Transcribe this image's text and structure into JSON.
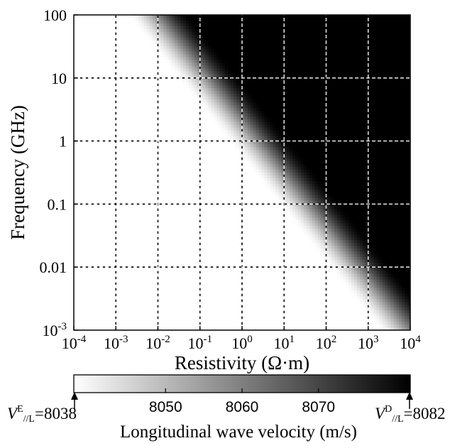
{
  "chart_data": {
    "type": "heatmap",
    "xlabel": "Resistivity (Ω·m)",
    "ylabel": "Frequency (GHz)",
    "x_scale": "log",
    "y_scale": "log",
    "xlim": [
      0.0001,
      10000
    ],
    "ylim": [
      0.001,
      100
    ],
    "x_ticks": [
      {
        "base": "10",
        "exp": "-4"
      },
      {
        "base": "10",
        "exp": "-3"
      },
      {
        "base": "10",
        "exp": "-2"
      },
      {
        "base": "10",
        "exp": "-1"
      },
      {
        "base": "10",
        "exp": "0"
      },
      {
        "base": "10",
        "exp": "1"
      },
      {
        "base": "10",
        "exp": "2"
      },
      {
        "base": "10",
        "exp": "3"
      },
      {
        "base": "10",
        "exp": "4"
      }
    ],
    "y_ticks": [
      {
        "value": 0.001,
        "label": "10",
        "exp": "-3"
      },
      {
        "value": 0.01,
        "label": "0.01",
        "exp": ""
      },
      {
        "value": 0.1,
        "label": "0.1",
        "exp": ""
      },
      {
        "value": 1,
        "label": "1",
        "exp": ""
      },
      {
        "value": 10,
        "label": "10",
        "exp": ""
      },
      {
        "value": 100,
        "label": "100",
        "exp": ""
      }
    ],
    "grid": true,
    "grid_style": "dashed",
    "transition": {
      "description": "velocity changes from V^E (white, low resistivity/low frequency) to V^D (black, high resistivity/high frequency)",
      "center_line": [
        {
          "resistivity": 0.01,
          "frequency": 100
        },
        {
          "resistivity": 10000,
          "frequency": 0.001
        }
      ],
      "width_decades": 1.5
    },
    "colorbar": {
      "label": "Longitudinal wave velocity (m/s)",
      "min": 8038,
      "max": 8082,
      "ticks": [
        8050,
        8060,
        8070
      ],
      "min_color": "#ffffff",
      "max_color": "#000000",
      "min_annotation": {
        "symbol": "V",
        "sup": "E",
        "sub": "//L",
        "value": "=8038"
      },
      "max_annotation": {
        "symbol": "V",
        "sup": "D",
        "sub": "//L",
        "value": "=8082"
      }
    }
  }
}
